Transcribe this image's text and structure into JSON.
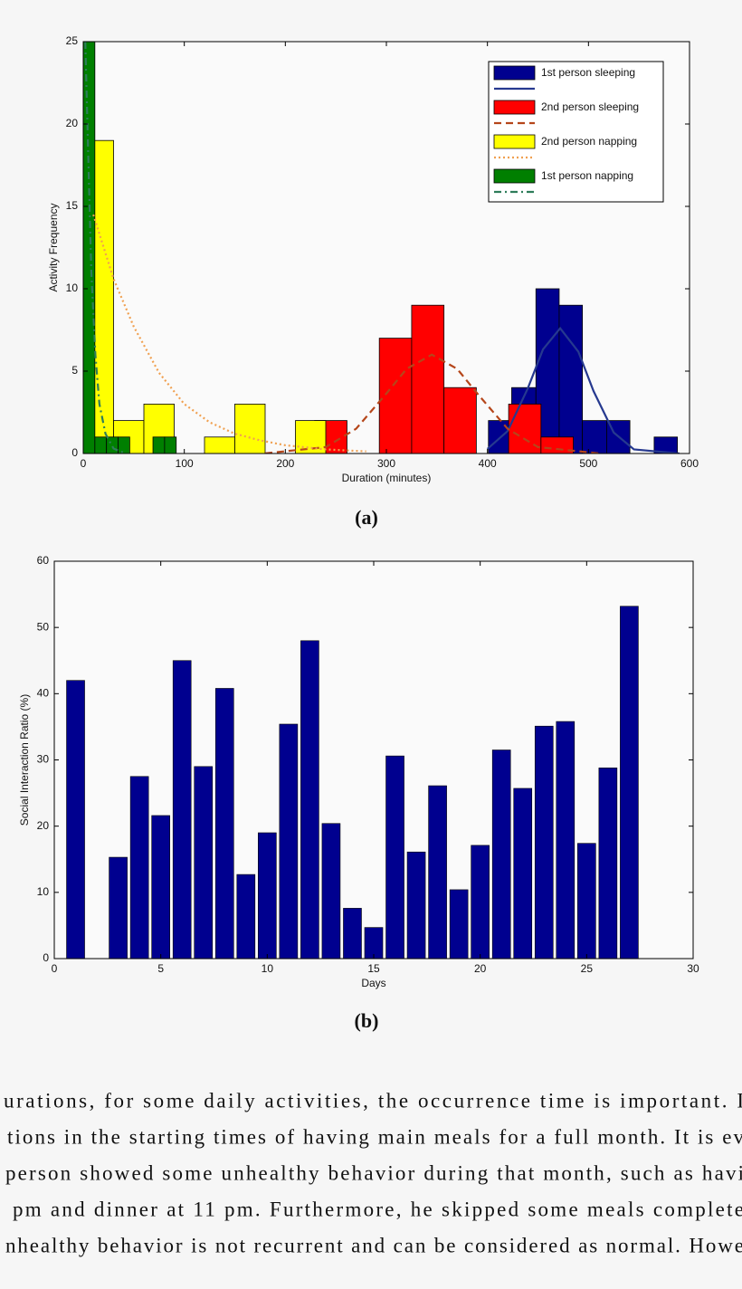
{
  "chart_data": [
    {
      "type": "histogram",
      "xlabel": "Duration (minutes)",
      "ylabel": "Activity Frequency",
      "xlim": [
        0,
        600
      ],
      "xticks": [
        0,
        100,
        200,
        300,
        400,
        500,
        600
      ],
      "ylim": [
        0,
        25
      ],
      "yticks": [
        0,
        5,
        10,
        15,
        20,
        25
      ],
      "legend": "upper right",
      "series": [
        {
          "name": "1st person sleeping",
          "color": "#00008f",
          "bins": [
            401,
            424,
            448,
            471,
            494,
            518,
            541,
            565,
            588
          ],
          "counts": [
            2,
            4,
            10,
            9,
            2,
            2,
            0,
            1
          ],
          "fit": {
            "color": "#26398f",
            "style": "solid",
            "x": [
              400,
              420,
              440,
              455,
              472,
              490,
              505,
              525,
              545,
              590
            ],
            "y": [
              0.28,
              1.36,
              3.96,
              6.32,
              7.6,
              6.18,
              3.79,
              1.27,
              0.25,
              0
            ]
          }
        },
        {
          "name": "2nd person sleeping",
          "color": "#ff0000",
          "bins": [
            229,
            261,
            293,
            325,
            357,
            389,
            421,
            453,
            485
          ],
          "counts": [
            2,
            0,
            7,
            9,
            4,
            0,
            3,
            1
          ],
          "fit": {
            "color": "#b5461a",
            "style": "dashed",
            "x": [
              180,
              240,
              270,
              300,
              320,
              345,
              370,
              390,
              420,
              450,
              510
            ],
            "y": [
              0.01,
              0.39,
              1.5,
              3.64,
              5.14,
              6,
              5.14,
              3.64,
              1.5,
              0.39,
              0.01
            ]
          }
        },
        {
          "name": "2nd person napping",
          "color": "#ffff00",
          "bins": [
            0,
            30,
            60,
            90,
            120,
            150,
            180,
            210,
            240
          ],
          "counts": [
            19,
            2,
            3,
            0,
            1,
            3,
            0,
            2
          ],
          "fit": {
            "color": "#f0a050",
            "style": "dotted",
            "x": [
              10,
              30,
              50,
              75,
              100,
              125,
              150,
              175,
              200,
              240,
              280
            ],
            "y": [
              14.5,
              10.6,
              7.7,
              4.9,
              3.0,
              1.9,
              1.2,
              0.8,
              0.5,
              0.25,
              0.13
            ]
          }
        },
        {
          "name": "1st person napping",
          "color": "#007f00",
          "bins": [
            0,
            11.5,
            23,
            34.5,
            46,
            57.5,
            69,
            80.5,
            92
          ],
          "counts": [
            25,
            1,
            1,
            1,
            0,
            0,
            1,
            1
          ],
          "fit": {
            "color": "#2e7d5a",
            "style": "dashdot",
            "x": [
              2,
              5,
              8,
              12,
              16,
              22,
              30,
              40
            ],
            "y": [
              25,
              18,
              11,
              6,
              3,
              1.2,
              0.3,
              0.05
            ]
          }
        }
      ]
    },
    {
      "type": "bar",
      "xlabel": "Days",
      "ylabel": "Social Interaction Ratio (%)",
      "x": [
        1,
        3,
        4,
        5,
        6,
        7,
        8,
        9,
        10,
        11,
        12,
        13,
        14,
        15,
        16,
        17,
        18,
        19,
        20,
        21,
        22,
        23,
        24,
        25,
        26,
        27
      ],
      "values": [
        42,
        15.3,
        27.5,
        21.6,
        45,
        29,
        40.8,
        12.7,
        19,
        35.4,
        48,
        20.4,
        7.6,
        4.7,
        30.6,
        16.1,
        26.1,
        10.4,
        17.1,
        31.5,
        25.7,
        35.1,
        35.8,
        17.4,
        28.8,
        53.2
      ],
      "color": "#00008f",
      "xlim": [
        0,
        30
      ],
      "xticks": [
        0,
        5,
        10,
        15,
        20,
        25,
        30
      ],
      "ylim": [
        0,
        60
      ],
      "yticks": [
        0,
        10,
        20,
        30,
        40,
        50,
        60
      ]
    }
  ],
  "captions": [
    "(a)",
    "(b)"
  ],
  "paragraph": [
    "urations, for some daily activities, the occurrence time is important. I",
    "tions in the starting times of having main meals for a full month. It is ev",
    "person showed some unhealthy behavior during that month, such as havi",
    "pm and dinner at 11 pm. Furthermore, he skipped some meals complete",
    "nhealthy behavior is not recurrent and can be considered as normal. Howe"
  ]
}
